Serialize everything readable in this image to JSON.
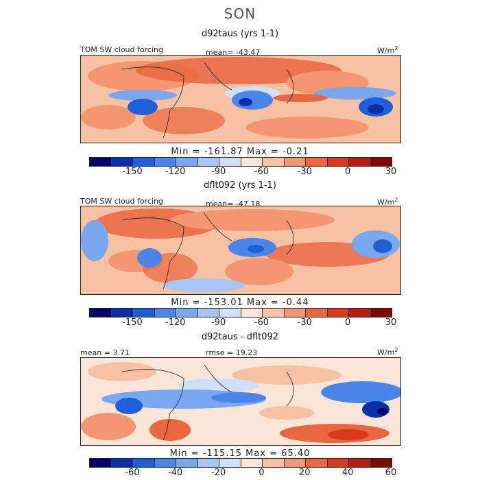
{
  "figure": {
    "season": "SON"
  },
  "palette": [
    "#08006a",
    "#0a2fa6",
    "#1f5fd6",
    "#4a86ea",
    "#7aa8f0",
    "#a7c6f5",
    "#cfe0f8",
    "#fbe5d6",
    "#f7c2a3",
    "#f2976f",
    "#e9663f",
    "#d93a1d",
    "#b71d10",
    "#7c0a04"
  ],
  "panels": [
    {
      "title": "d92taus (yrs 1-1)",
      "left_label": "TOM SW cloud forcing",
      "center_label": "mean= -43.47",
      "units_label": "W/m",
      "units_exp": "2",
      "minmax": "Min = -161.87 Max = -0.21",
      "ticks": [
        "-150",
        "-120",
        "-90",
        "-60",
        "-30",
        "0",
        "30"
      ]
    },
    {
      "title": "dflt092 (yrs 1-1)",
      "left_label": "TOM SW cloud forcing",
      "center_label": "mean= -47.18",
      "units_label": "W/m",
      "units_exp": "2",
      "minmax": "Min = -153.01 Max = -0.44",
      "ticks": [
        "-150",
        "-120",
        "-90",
        "-60",
        "-30",
        "0",
        "30"
      ]
    },
    {
      "title": "d92taus - dflt092",
      "left_label": "mean = 3.71",
      "center_label": "rmse = 19.23",
      "units_label": "W/m",
      "units_exp": "2",
      "minmax": "Min = -115.15 Max = 65.40",
      "ticks": [
        "-60",
        "-40",
        "-20",
        "0",
        "20",
        "40",
        "60"
      ]
    }
  ]
}
